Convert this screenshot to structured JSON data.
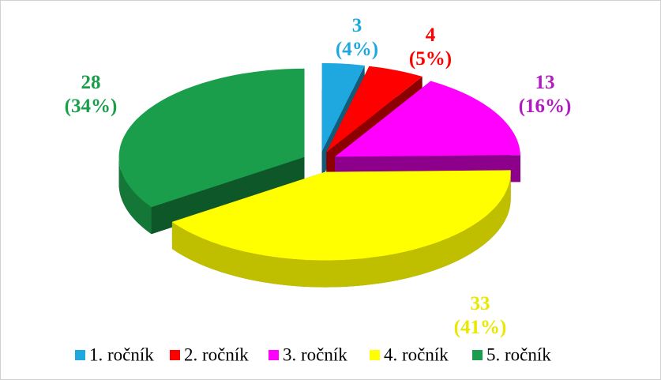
{
  "chart_data": {
    "type": "pie3d",
    "categories": [
      "1. ročník",
      "2. ročník",
      "3. ročník",
      "4. ročník",
      "5. ročník"
    ],
    "values": [
      3,
      4,
      13,
      33,
      28
    ],
    "value_labels": [
      [
        "3",
        "(4%)"
      ],
      [
        "4",
        "(5%)"
      ],
      [
        "13",
        "(16%)"
      ],
      [
        "33",
        "(41%)"
      ],
      [
        "28",
        "(34%)"
      ]
    ],
    "colors": [
      "#1fa8e0",
      "#ff0000",
      "#ff00ff",
      "#ffff00",
      "#1a9e4b"
    ],
    "label_colors": [
      "#1fa8e0",
      "#ff0000",
      "#b01bc0",
      "#e8e800",
      "#1a9e4b"
    ],
    "legend": "bottom"
  }
}
